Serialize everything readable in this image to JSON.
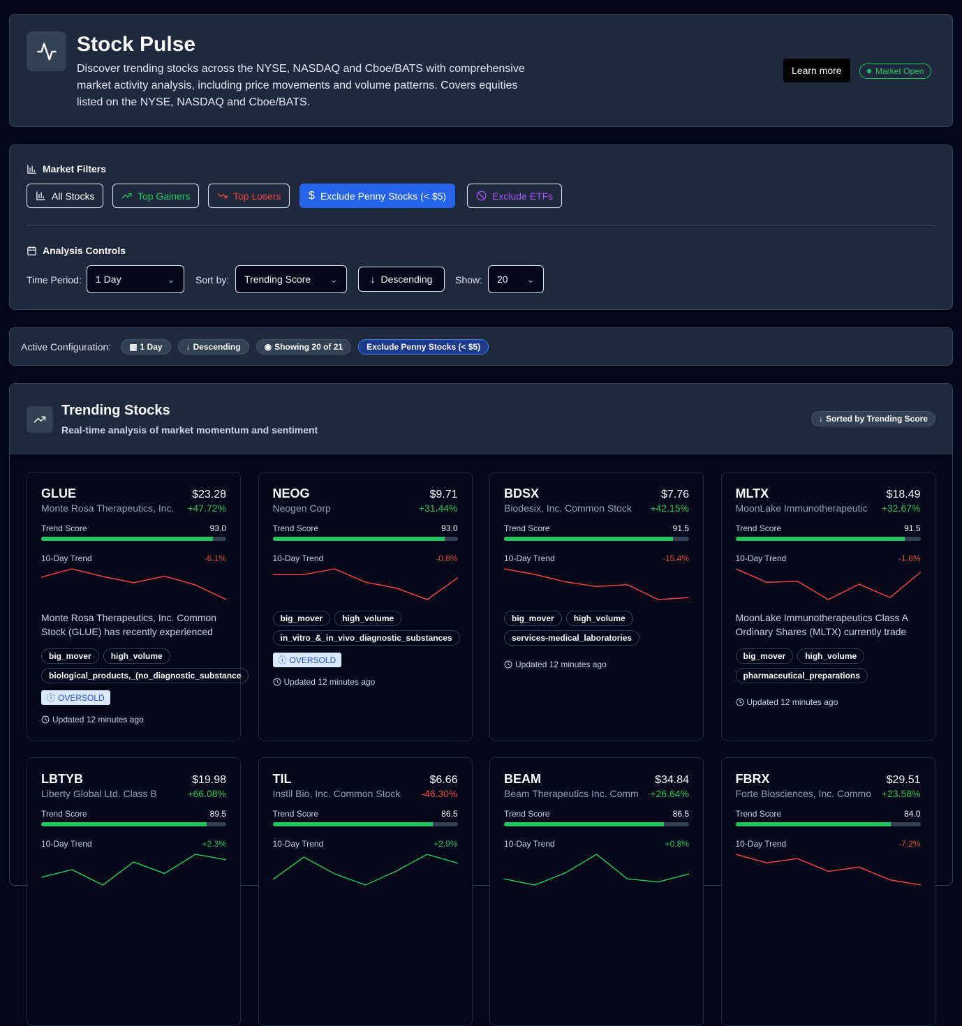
{
  "header": {
    "title": "Stock Pulse",
    "description": "Discover trending stocks across the NYSE, NASDAQ and Cboe/BATS with comprehensive market activity analysis, including price movements and volume patterns. Covers equities listed on the NYSE, NASDAQ and Cboe/BATS.",
    "learn_more": "Learn more",
    "status": "Market Open"
  },
  "filters": {
    "title": "Market Filters",
    "buttons": [
      "All Stocks",
      "Top Gainers",
      "Top Losers",
      "Exclude Penny Stocks (< $5)",
      "Exclude ETFs"
    ]
  },
  "analysis": {
    "title": "Analysis Controls",
    "time_period_label": "Time Period:",
    "time_period": "1 Day",
    "sort_label": "Sort by:",
    "sort": "Trending Score",
    "order": "Descending",
    "show_label": "Show:",
    "show": "20"
  },
  "active": {
    "label": "Active Configuration:",
    "chips": [
      "1 Day",
      "Descending",
      "Showing 20 of 21",
      "Exclude Penny Stocks (< $5)"
    ]
  },
  "trending": {
    "title": "Trending Stocks",
    "subtitle": "Real-time analysis of market momentum and sentiment",
    "sort_badge": "Sorted by Trending Score",
    "score_label": "Trend Score",
    "trend_label": "10-Day Trend",
    "score_range": [
      0,
      100
    ],
    "cards": [
      {
        "symbol": "GLUE",
        "price": "$23.28",
        "name": "Monte Rosa Therapeutics, Inc.",
        "change": "+47.72%",
        "score": {
          "value": 93,
          "label": "93.0"
        },
        "trend_change": "-6.1%",
        "trend": [
          100,
          102.3,
          100.2,
          98.5,
          100.3,
          97.9,
          93.9
        ],
        "description": "Monte Rosa Therapeutics, Inc. Common Stock (GLUE) has recently experienced",
        "tags": [
          "big_mover",
          "high_volume",
          "biological_products,_(no_diagnostic_substance"
        ],
        "badge": "OVERSOLD",
        "updated": "Updated 12 minutes ago"
      },
      {
        "symbol": "NEOG",
        "price": "$9.71",
        "name": "Neogen Corp",
        "change": "+31.44%",
        "score": {
          "value": 93,
          "label": "93.0"
        },
        "trend_change": "-0.8%",
        "trend": [
          100,
          100,
          101.5,
          98,
          96.5,
          93.5,
          99.2
        ],
        "tags": [
          "big_mover",
          "high_volume",
          "in_vitro_&_in_vivo_diagnostic_substances"
        ],
        "badge": "OVERSOLD",
        "updated": "Updated 12 minutes ago"
      },
      {
        "symbol": "BDSX",
        "price": "$7.76",
        "name": "Biodesix, Inc. Common Stock",
        "change": "+42.15%",
        "score": {
          "value": 91.5,
          "label": "91.5"
        },
        "trend_change": "-15.4%",
        "trend": [
          100,
          97,
          93,
          90.5,
          91.5,
          83.5,
          84.6
        ],
        "tags": [
          "big_mover",
          "high_volume",
          "services-medical_laboratories"
        ],
        "updated": "Updated 12 minutes ago"
      },
      {
        "symbol": "MLTX",
        "price": "$18.49",
        "name": "MoonLake Immunotherapeutic",
        "change": "+32.67%",
        "score": {
          "value": 91.5,
          "label": "91.5"
        },
        "trend_change": "-1.6%",
        "trend": [
          100,
          93,
          93.5,
          84,
          92,
          85,
          98.4
        ],
        "description": "MoonLake Immunotherapeutics Class A Ordinary Shares (MLTX) currently trade",
        "tags": [
          "big_mover",
          "high_volume",
          "pharmaceutical_preparations"
        ],
        "updated": "Updated 12 minutes ago"
      },
      {
        "symbol": "LBTYB",
        "price": "$19.98",
        "name": "Liberty Global Ltd. Class B",
        "change": "+66.08%",
        "score": {
          "value": 89.5,
          "label": "89.5"
        },
        "trend_change": "+2.3%",
        "trend": [
          100,
          101,
          99,
          102,
          100.5,
          103,
          102.3
        ]
      },
      {
        "symbol": "TIL",
        "price": "$6.66",
        "name": "Instil Bio, Inc. Common Stock",
        "change": "-46.30%",
        "score": {
          "value": 86.5,
          "label": "86.5"
        },
        "trend_change": "+2.9%",
        "trend": [
          100,
          104,
          101,
          99,
          101.5,
          104.5,
          102.9
        ]
      },
      {
        "symbol": "BEAM",
        "price": "$34.84",
        "name": "Beam Therapeutics Inc. Comm",
        "change": "+26.64%",
        "score": {
          "value": 86.5,
          "label": "86.5"
        },
        "trend_change": "+0.8%",
        "trend": [
          100,
          99,
          101,
          104,
          100,
          99.5,
          100.8
        ]
      },
      {
        "symbol": "FBRX",
        "price": "$29.51",
        "name": "Forte Biosciences, Inc. Commo",
        "change": "+23.58%",
        "score": {
          "value": 84,
          "label": "84.0"
        },
        "trend_change": "-7.2%",
        "trend": [
          100,
          98,
          99,
          96,
          97,
          94,
          92.8
        ]
      }
    ]
  }
}
